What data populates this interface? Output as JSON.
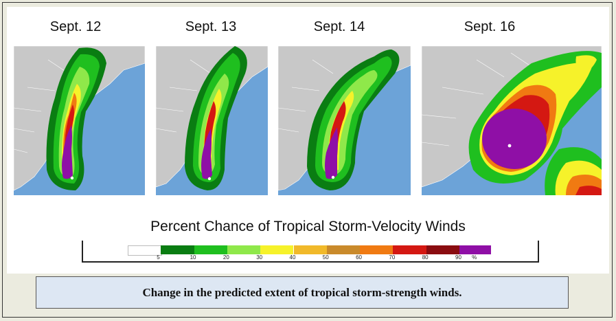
{
  "panels": [
    {
      "date": "Sept. 12"
    },
    {
      "date": "Sept. 13"
    },
    {
      "date": "Sept. 14"
    },
    {
      "date": "Sept. 16"
    }
  ],
  "legend": {
    "title": "Percent Chance of Tropical Storm-Velocity Winds",
    "bins": [
      {
        "color": "#ffffff",
        "label": "5"
      },
      {
        "color": "#0a7d12",
        "label": "10"
      },
      {
        "color": "#1fbf1f",
        "label": "20"
      },
      {
        "color": "#8fe84a",
        "label": "30"
      },
      {
        "color": "#f6f22a",
        "label": "40"
      },
      {
        "color": "#f1b92a",
        "label": "50"
      },
      {
        "color": "#c98a2b",
        "label": "60"
      },
      {
        "color": "#f07a12",
        "label": "70"
      },
      {
        "color": "#d41812",
        "label": "80"
      },
      {
        "color": "#8a0c10",
        "label": "90"
      },
      {
        "color": "#8f0fa6",
        "label": "%"
      }
    ]
  },
  "caption": "Change in the predicted extent of tropical storm-strength winds.",
  "colors": {
    "ocean": "#6ca3d8",
    "land": "#c8c8c8",
    "border": "#ffffff"
  }
}
